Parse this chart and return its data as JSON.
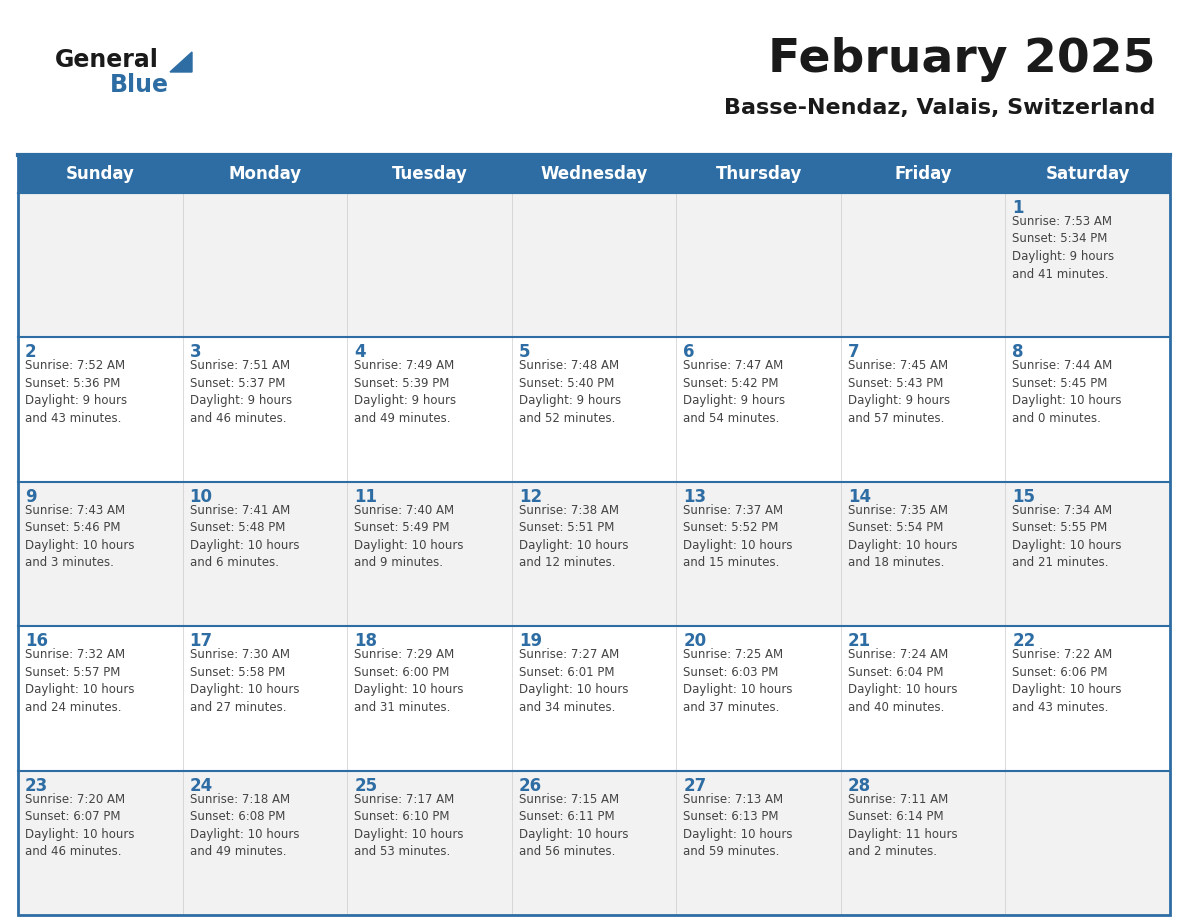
{
  "title": "February 2025",
  "subtitle": "Basse-Nendaz, Valais, Switzerland",
  "header_bg": "#2E6DA4",
  "header_text": "#FFFFFF",
  "cell_bg_odd": "#F2F2F2",
  "cell_bg_even": "#FFFFFF",
  "border_color": "#2E6DA4",
  "inner_line_color": "#2E6DA4",
  "cell_line_color": "#CCCCCC",
  "days_of_week": [
    "Sunday",
    "Monday",
    "Tuesday",
    "Wednesday",
    "Thursday",
    "Friday",
    "Saturday"
  ],
  "title_color": "#1A1A1A",
  "subtitle_color": "#1A1A1A",
  "day_num_color": "#2E6DA4",
  "info_color": "#444444",
  "logo_general_color": "#1A1A1A",
  "logo_blue_color": "#2E6DA4",
  "weeks": [
    [
      {
        "day": "",
        "info": ""
      },
      {
        "day": "",
        "info": ""
      },
      {
        "day": "",
        "info": ""
      },
      {
        "day": "",
        "info": ""
      },
      {
        "day": "",
        "info": ""
      },
      {
        "day": "",
        "info": ""
      },
      {
        "day": "1",
        "info": "Sunrise: 7:53 AM\nSunset: 5:34 PM\nDaylight: 9 hours\nand 41 minutes."
      }
    ],
    [
      {
        "day": "2",
        "info": "Sunrise: 7:52 AM\nSunset: 5:36 PM\nDaylight: 9 hours\nand 43 minutes."
      },
      {
        "day": "3",
        "info": "Sunrise: 7:51 AM\nSunset: 5:37 PM\nDaylight: 9 hours\nand 46 minutes."
      },
      {
        "day": "4",
        "info": "Sunrise: 7:49 AM\nSunset: 5:39 PM\nDaylight: 9 hours\nand 49 minutes."
      },
      {
        "day": "5",
        "info": "Sunrise: 7:48 AM\nSunset: 5:40 PM\nDaylight: 9 hours\nand 52 minutes."
      },
      {
        "day": "6",
        "info": "Sunrise: 7:47 AM\nSunset: 5:42 PM\nDaylight: 9 hours\nand 54 minutes."
      },
      {
        "day": "7",
        "info": "Sunrise: 7:45 AM\nSunset: 5:43 PM\nDaylight: 9 hours\nand 57 minutes."
      },
      {
        "day": "8",
        "info": "Sunrise: 7:44 AM\nSunset: 5:45 PM\nDaylight: 10 hours\nand 0 minutes."
      }
    ],
    [
      {
        "day": "9",
        "info": "Sunrise: 7:43 AM\nSunset: 5:46 PM\nDaylight: 10 hours\nand 3 minutes."
      },
      {
        "day": "10",
        "info": "Sunrise: 7:41 AM\nSunset: 5:48 PM\nDaylight: 10 hours\nand 6 minutes."
      },
      {
        "day": "11",
        "info": "Sunrise: 7:40 AM\nSunset: 5:49 PM\nDaylight: 10 hours\nand 9 minutes."
      },
      {
        "day": "12",
        "info": "Sunrise: 7:38 AM\nSunset: 5:51 PM\nDaylight: 10 hours\nand 12 minutes."
      },
      {
        "day": "13",
        "info": "Sunrise: 7:37 AM\nSunset: 5:52 PM\nDaylight: 10 hours\nand 15 minutes."
      },
      {
        "day": "14",
        "info": "Sunrise: 7:35 AM\nSunset: 5:54 PM\nDaylight: 10 hours\nand 18 minutes."
      },
      {
        "day": "15",
        "info": "Sunrise: 7:34 AM\nSunset: 5:55 PM\nDaylight: 10 hours\nand 21 minutes."
      }
    ],
    [
      {
        "day": "16",
        "info": "Sunrise: 7:32 AM\nSunset: 5:57 PM\nDaylight: 10 hours\nand 24 minutes."
      },
      {
        "day": "17",
        "info": "Sunrise: 7:30 AM\nSunset: 5:58 PM\nDaylight: 10 hours\nand 27 minutes."
      },
      {
        "day": "18",
        "info": "Sunrise: 7:29 AM\nSunset: 6:00 PM\nDaylight: 10 hours\nand 31 minutes."
      },
      {
        "day": "19",
        "info": "Sunrise: 7:27 AM\nSunset: 6:01 PM\nDaylight: 10 hours\nand 34 minutes."
      },
      {
        "day": "20",
        "info": "Sunrise: 7:25 AM\nSunset: 6:03 PM\nDaylight: 10 hours\nand 37 minutes."
      },
      {
        "day": "21",
        "info": "Sunrise: 7:24 AM\nSunset: 6:04 PM\nDaylight: 10 hours\nand 40 minutes."
      },
      {
        "day": "22",
        "info": "Sunrise: 7:22 AM\nSunset: 6:06 PM\nDaylight: 10 hours\nand 43 minutes."
      }
    ],
    [
      {
        "day": "23",
        "info": "Sunrise: 7:20 AM\nSunset: 6:07 PM\nDaylight: 10 hours\nand 46 minutes."
      },
      {
        "day": "24",
        "info": "Sunrise: 7:18 AM\nSunset: 6:08 PM\nDaylight: 10 hours\nand 49 minutes."
      },
      {
        "day": "25",
        "info": "Sunrise: 7:17 AM\nSunset: 6:10 PM\nDaylight: 10 hours\nand 53 minutes."
      },
      {
        "day": "26",
        "info": "Sunrise: 7:15 AM\nSunset: 6:11 PM\nDaylight: 10 hours\nand 56 minutes."
      },
      {
        "day": "27",
        "info": "Sunrise: 7:13 AM\nSunset: 6:13 PM\nDaylight: 10 hours\nand 59 minutes."
      },
      {
        "day": "28",
        "info": "Sunrise: 7:11 AM\nSunset: 6:14 PM\nDaylight: 11 hours\nand 2 minutes."
      },
      {
        "day": "",
        "info": ""
      }
    ]
  ]
}
